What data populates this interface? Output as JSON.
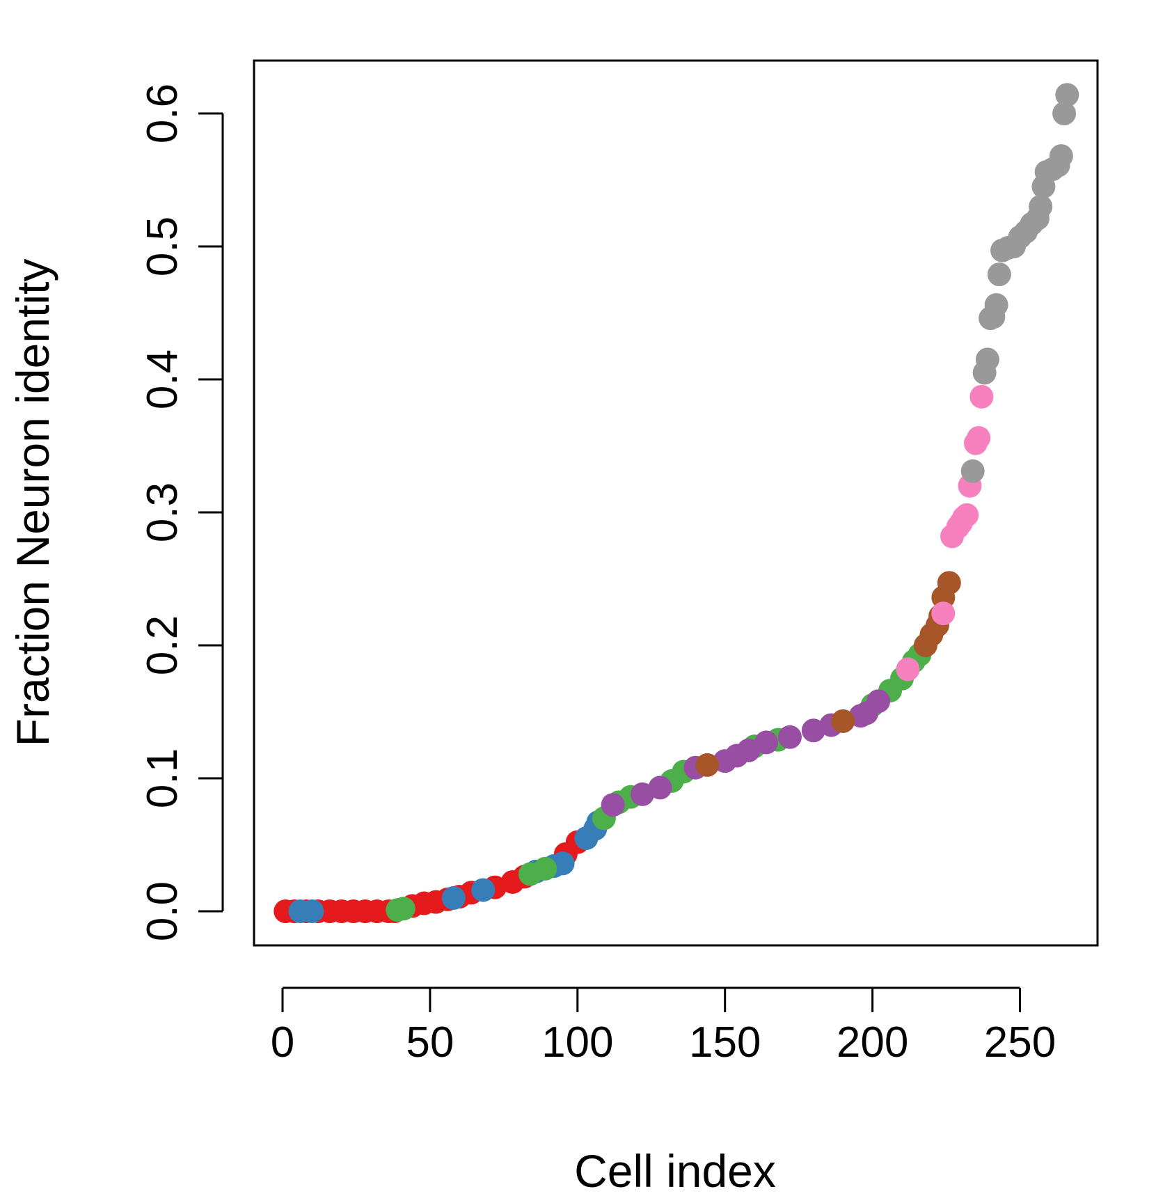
{
  "chart_data": {
    "type": "scatter",
    "title": "",
    "xlabel": "Cell index",
    "ylabel": "Fraction Neuron identity",
    "xlim": [
      0,
      275
    ],
    "ylim": [
      0,
      0.64
    ],
    "x_ticks": [
      0,
      50,
      100,
      150,
      200,
      250
    ],
    "x_tick_labels": [
      "0",
      "50",
      "100",
      "150",
      "200",
      "250"
    ],
    "y_ticks": [
      0.0,
      0.1,
      0.2,
      0.3,
      0.4,
      0.5,
      0.6
    ],
    "y_tick_labels": [
      "0.0",
      "0.1",
      "0.2",
      "0.3",
      "0.4",
      "0.5",
      "0.6"
    ],
    "grid": false,
    "legend": "none",
    "colors": {
      "red": "#e41a1c",
      "blue": "#377eb8",
      "green": "#4daf4a",
      "purple": "#984ea3",
      "brown": "#a65628",
      "pink": "#f781bf",
      "gray": "#999999"
    },
    "series": [
      {
        "name": "red",
        "color": "#e41a1c",
        "points": [
          [
            1,
            0.0
          ],
          [
            4,
            0.0
          ],
          [
            8,
            0.0
          ],
          [
            12,
            0.0
          ],
          [
            16,
            0.0
          ],
          [
            20,
            0.0
          ],
          [
            24,
            0.0
          ],
          [
            28,
            0.0
          ],
          [
            32,
            0.0
          ],
          [
            36,
            0.0
          ],
          [
            38,
            0.0
          ],
          [
            44,
            0.004
          ],
          [
            48,
            0.006
          ],
          [
            52,
            0.007
          ],
          [
            56,
            0.009
          ],
          [
            60,
            0.011
          ],
          [
            64,
            0.014
          ],
          [
            72,
            0.018
          ],
          [
            78,
            0.022
          ],
          [
            82,
            0.026
          ],
          [
            96,
            0.043
          ],
          [
            100,
            0.052
          ]
        ]
      },
      {
        "name": "blue",
        "color": "#377eb8",
        "points": [
          [
            6,
            0.0
          ],
          [
            10,
            0.0
          ],
          [
            58,
            0.01
          ],
          [
            68,
            0.016
          ],
          [
            86,
            0.03
          ],
          [
            92,
            0.034
          ],
          [
            95,
            0.036
          ],
          [
            103,
            0.055
          ],
          [
            106,
            0.062
          ],
          [
            107,
            0.067
          ]
        ]
      },
      {
        "name": "green",
        "color": "#4daf4a",
        "points": [
          [
            39,
            0.001
          ],
          [
            41,
            0.002
          ],
          [
            84,
            0.028
          ],
          [
            89,
            0.032
          ],
          [
            109,
            0.07
          ],
          [
            114,
            0.082
          ],
          [
            118,
            0.086
          ],
          [
            132,
            0.098
          ],
          [
            136,
            0.105
          ],
          [
            160,
            0.124
          ],
          [
            168,
            0.129
          ],
          [
            200,
            0.155
          ],
          [
            206,
            0.166
          ],
          [
            210,
            0.175
          ],
          [
            214,
            0.188
          ],
          [
            216,
            0.193
          ]
        ]
      },
      {
        "name": "purple",
        "color": "#984ea3",
        "points": [
          [
            112,
            0.08
          ],
          [
            122,
            0.088
          ],
          [
            128,
            0.093
          ],
          [
            140,
            0.108
          ],
          [
            150,
            0.113
          ],
          [
            154,
            0.117
          ],
          [
            158,
            0.121
          ],
          [
            164,
            0.127
          ],
          [
            172,
            0.131
          ],
          [
            180,
            0.136
          ],
          [
            186,
            0.14
          ],
          [
            196,
            0.147
          ],
          [
            198,
            0.149
          ],
          [
            202,
            0.158
          ]
        ]
      },
      {
        "name": "brown",
        "color": "#a65628",
        "points": [
          [
            144,
            0.11
          ],
          [
            190,
            0.143
          ],
          [
            218,
            0.2
          ],
          [
            220,
            0.208
          ],
          [
            222,
            0.215
          ],
          [
            223,
            0.222
          ],
          [
            224,
            0.236
          ],
          [
            226,
            0.247
          ]
        ]
      },
      {
        "name": "pink",
        "color": "#f781bf",
        "points": [
          [
            212,
            0.182
          ],
          [
            224,
            0.224
          ],
          [
            227,
            0.282
          ],
          [
            229,
            0.289
          ],
          [
            230,
            0.292
          ],
          [
            231,
            0.296
          ],
          [
            232,
            0.298
          ],
          [
            233,
            0.32
          ],
          [
            235,
            0.352
          ],
          [
            236,
            0.356
          ],
          [
            237,
            0.387
          ]
        ]
      },
      {
        "name": "gray",
        "color": "#999999",
        "points": [
          [
            234,
            0.331
          ],
          [
            238,
            0.405
          ],
          [
            239,
            0.415
          ],
          [
            240,
            0.446
          ],
          [
            241,
            0.447
          ],
          [
            242,
            0.456
          ],
          [
            243,
            0.479
          ],
          [
            244,
            0.497
          ],
          [
            246,
            0.499
          ],
          [
            248,
            0.5
          ],
          [
            250,
            0.507
          ],
          [
            252,
            0.511
          ],
          [
            254,
            0.517
          ],
          [
            256,
            0.521
          ],
          [
            257,
            0.53
          ],
          [
            258,
            0.545
          ],
          [
            259,
            0.556
          ],
          [
            261,
            0.558
          ],
          [
            263,
            0.561
          ],
          [
            264,
            0.568
          ],
          [
            265,
            0.6
          ],
          [
            266,
            0.614
          ]
        ]
      }
    ]
  }
}
